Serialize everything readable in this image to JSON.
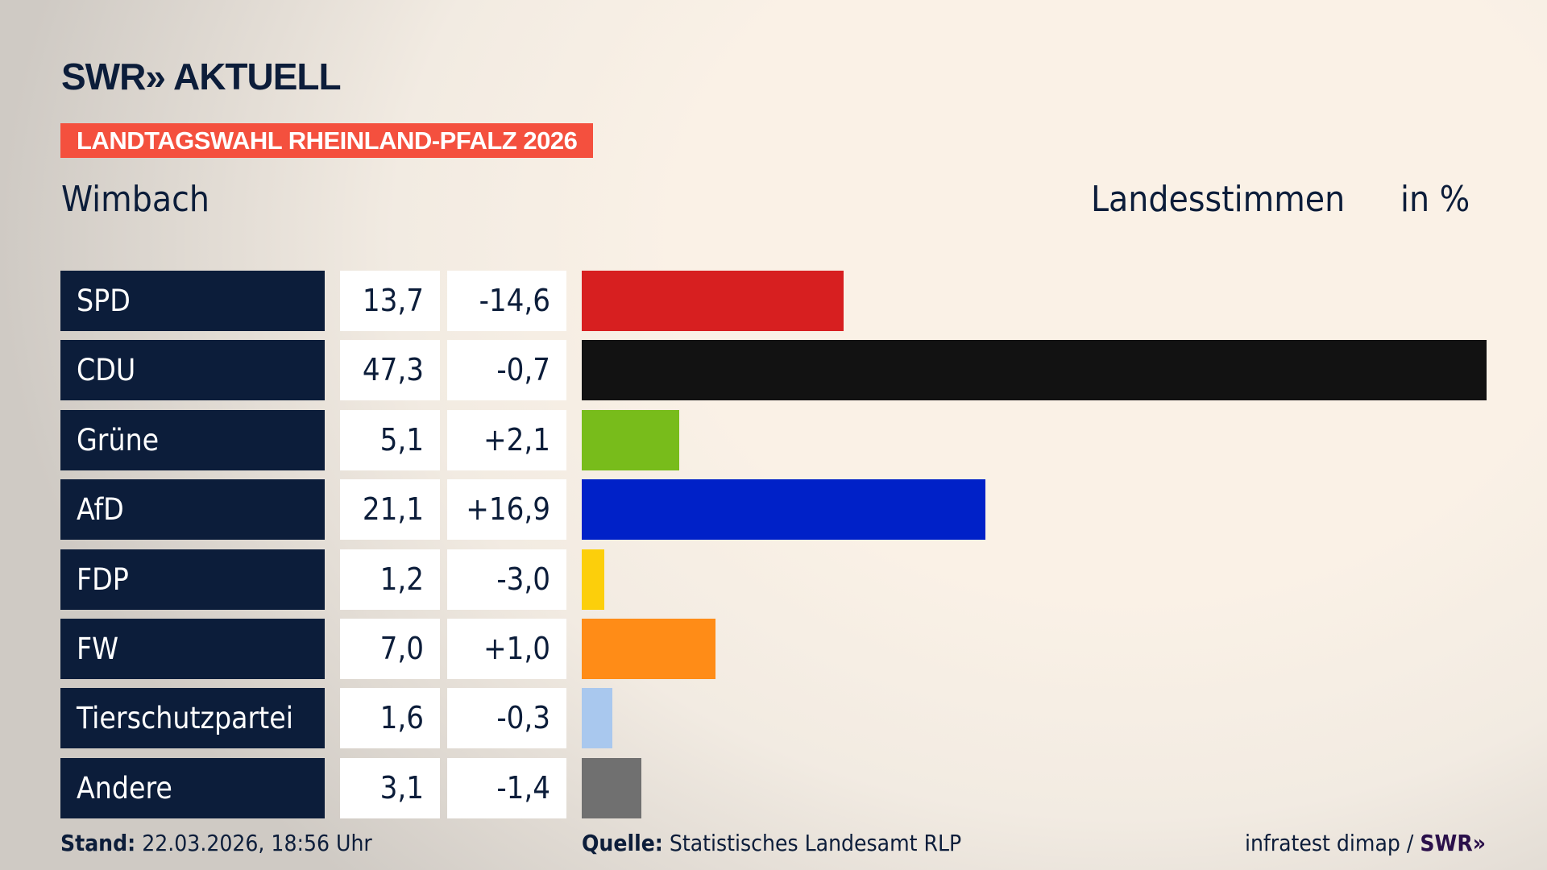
{
  "header": {
    "logo": "SWR» AKTUELL",
    "banner": "LANDTAGSWAHL RHEINLAND-PFALZ 2026",
    "region": "Wimbach",
    "metric": "Landesstimmen",
    "unit": "in %"
  },
  "chart_data": {
    "type": "bar",
    "orientation": "horizontal",
    "xlim": [
      0,
      47.3
    ],
    "categories": [
      "SPD",
      "CDU",
      "Grüne",
      "AfD",
      "FDP",
      "FW",
      "Tierschutzpartei",
      "Andere"
    ],
    "values": [
      13.7,
      47.3,
      5.1,
      21.1,
      1.2,
      7.0,
      1.6,
      3.1
    ],
    "value_labels": [
      "13,7",
      "47,3",
      "5,1",
      "21,1",
      "1,2",
      "7,0",
      "1,6",
      "3,1"
    ],
    "diff_labels": [
      "-14,6",
      "-0,7",
      "+2,1",
      "+16,9",
      "-3,0",
      "+1,0",
      "-0,3",
      "-1,4"
    ],
    "colors": [
      "#d71f20",
      "#121212",
      "#78bc1b",
      "#0021c8",
      "#fccf0b",
      "#ff8c17",
      "#a9c8ee",
      "#707070"
    ]
  },
  "footer": {
    "stand_label": "Stand:",
    "stand_value": "22.03.2026, 18:56 Uhr",
    "source_label": "Quelle:",
    "source_value": "Statistisches Landesamt RLP",
    "credit": "infratest dimap /",
    "credit_logo": "SWR»"
  }
}
